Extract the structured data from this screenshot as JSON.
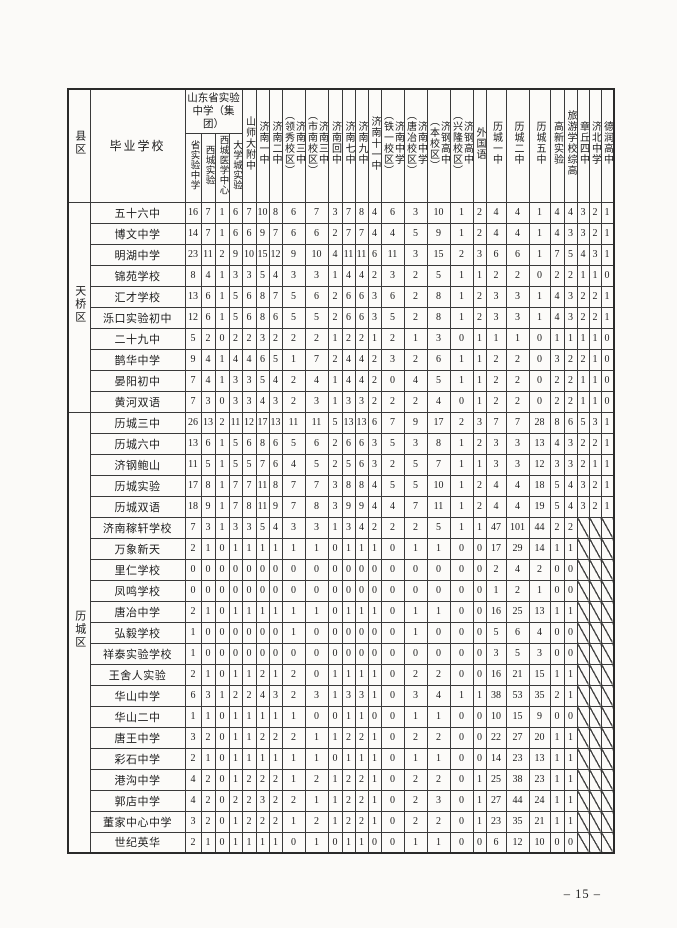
{
  "page": {
    "footer_page_number": "– 15 –"
  },
  "table": {
    "corner_header": "县区",
    "school_header": "毕业学校",
    "group_header": "山东省实验中学（集团）",
    "group_columns": [
      "省实验中学",
      "西城实验",
      "西城医学中心",
      "大学城实验"
    ],
    "columns": [
      "山师大附中",
      "济南一中",
      "济南二中",
      "济南三中\n（领秀校区）",
      "济南三中\n（市南校区）",
      "济南回中",
      "济南七中",
      "济南九中",
      "济南十一中",
      "济南中学\n（铁一校区）",
      "济南中学\n（唐冶校区）",
      "济钢高中\n（本校区）",
      "济钢高中\n（兴隆校区）",
      "外国语",
      "历城一中",
      "历城二中",
      "历城五中",
      "高新实验",
      "旅游学校综高",
      "章丘四中",
      "济北中学",
      "德润高中"
    ],
    "districts": [
      {
        "name": "天桥区",
        "rows": [
          {
            "school": "五十六中",
            "values": [
              16,
              7,
              1,
              6,
              7,
              10,
              8,
              6,
              7,
              3,
              7,
              8,
              4,
              6,
              3,
              10,
              1,
              2,
              4,
              4,
              1,
              4,
              4,
              3,
              2,
              1
            ]
          },
          {
            "school": "博文中学",
            "values": [
              14,
              7,
              1,
              6,
              6,
              9,
              7,
              6,
              6,
              2,
              7,
              7,
              4,
              4,
              5,
              9,
              1,
              2,
              4,
              4,
              1,
              4,
              3,
              3,
              2,
              1
            ]
          },
          {
            "school": "明湖中学",
            "values": [
              23,
              11,
              2,
              9,
              10,
              15,
              12,
              9,
              10,
              4,
              11,
              11,
              6,
              11,
              3,
              15,
              2,
              3,
              6,
              6,
              1,
              7,
              5,
              4,
              3,
              1
            ]
          },
          {
            "school": "锦苑学校",
            "values": [
              8,
              4,
              1,
              3,
              3,
              5,
              4,
              3,
              3,
              1,
              4,
              4,
              2,
              3,
              2,
              5,
              1,
              1,
              2,
              2,
              0,
              2,
              2,
              1,
              1,
              0
            ]
          },
          {
            "school": "汇才学校",
            "values": [
              13,
              6,
              1,
              5,
              6,
              8,
              7,
              5,
              6,
              2,
              6,
              6,
              3,
              6,
              2,
              8,
              1,
              2,
              3,
              3,
              1,
              4,
              3,
              2,
              2,
              1
            ]
          },
          {
            "school": "泺口实验初中",
            "values": [
              12,
              6,
              1,
              5,
              6,
              8,
              6,
              5,
              5,
              2,
              6,
              6,
              3,
              5,
              2,
              8,
              1,
              2,
              3,
              3,
              1,
              4,
              3,
              2,
              2,
              1
            ]
          },
          {
            "school": "二十九中",
            "values": [
              5,
              2,
              0,
              2,
              2,
              3,
              2,
              2,
              2,
              1,
              2,
              2,
              1,
              2,
              1,
              3,
              0,
              1,
              1,
              1,
              0,
              1,
              1,
              1,
              1,
              0
            ]
          },
          {
            "school": "鹊华中学",
            "values": [
              9,
              4,
              1,
              4,
              4,
              6,
              5,
              1,
              7,
              2,
              4,
              4,
              2,
              3,
              2,
              6,
              1,
              1,
              2,
              2,
              0,
              3,
              2,
              2,
              1,
              0
            ]
          },
          {
            "school": "晏阳初中",
            "values": [
              7,
              4,
              1,
              3,
              3,
              5,
              4,
              2,
              4,
              1,
              4,
              4,
              2,
              0,
              4,
              5,
              1,
              1,
              2,
              2,
              0,
              2,
              2,
              1,
              1,
              0
            ]
          },
          {
            "school": "黄河双语",
            "values": [
              7,
              3,
              0,
              3,
              3,
              4,
              3,
              2,
              3,
              1,
              3,
              3,
              2,
              2,
              2,
              4,
              0,
              1,
              2,
              2,
              0,
              2,
              2,
              1,
              1,
              0
            ]
          }
        ]
      },
      {
        "name": "历城区",
        "rows": [
          {
            "school": "历城三中",
            "values": [
              26,
              13,
              2,
              11,
              12,
              17,
              13,
              11,
              11,
              5,
              13,
              13,
              6,
              7,
              9,
              17,
              2,
              3,
              7,
              7,
              28,
              8,
              6,
              5,
              3,
              1
            ]
          },
          {
            "school": "历城六中",
            "values": [
              13,
              6,
              1,
              5,
              6,
              8,
              6,
              5,
              6,
              2,
              6,
              6,
              3,
              5,
              3,
              8,
              1,
              2,
              3,
              3,
              13,
              4,
              3,
              2,
              2,
              1
            ]
          },
          {
            "school": "济钢鲍山",
            "values": [
              11,
              5,
              1,
              5,
              5,
              7,
              6,
              4,
              5,
              2,
              5,
              6,
              3,
              2,
              5,
              7,
              1,
              1,
              3,
              3,
              12,
              3,
              3,
              2,
              1,
              1
            ]
          },
          {
            "school": "历城实验",
            "values": [
              17,
              8,
              1,
              7,
              7,
              11,
              8,
              7,
              7,
              3,
              8,
              8,
              4,
              5,
              5,
              10,
              1,
              2,
              4,
              4,
              18,
              5,
              4,
              3,
              2,
              1
            ]
          },
          {
            "school": "历城双语",
            "values": [
              18,
              9,
              1,
              7,
              8,
              11,
              9,
              7,
              8,
              3,
              9,
              9,
              4,
              4,
              7,
              11,
              1,
              2,
              4,
              4,
              19,
              5,
              4,
              3,
              2,
              1
            ]
          },
          {
            "school": "济南稼轩学校",
            "values": [
              7,
              3,
              1,
              3,
              3,
              5,
              4,
              3,
              3,
              1,
              3,
              4,
              2,
              2,
              2,
              5,
              1,
              1,
              47,
              101,
              44,
              2,
              2,
              null,
              null,
              null
            ]
          },
          {
            "school": "万象新天",
            "values": [
              2,
              1,
              0,
              1,
              1,
              1,
              1,
              1,
              1,
              0,
              1,
              1,
              1,
              0,
              1,
              1,
              0,
              0,
              17,
              29,
              14,
              1,
              1,
              null,
              null,
              null
            ]
          },
          {
            "school": "里仁学校",
            "values": [
              0,
              0,
              0,
              0,
              0,
              0,
              0,
              0,
              0,
              0,
              0,
              0,
              0,
              0,
              0,
              0,
              0,
              0,
              2,
              4,
              2,
              0,
              0,
              null,
              null,
              null
            ]
          },
          {
            "school": "凤鸣学校",
            "values": [
              0,
              0,
              0,
              0,
              0,
              0,
              0,
              0,
              0,
              0,
              0,
              0,
              0,
              0,
              0,
              0,
              0,
              0,
              1,
              2,
              1,
              0,
              0,
              null,
              null,
              null
            ]
          },
          {
            "school": "唐冶中学",
            "values": [
              2,
              1,
              0,
              1,
              1,
              1,
              1,
              1,
              1,
              0,
              1,
              1,
              1,
              0,
              1,
              1,
              0,
              0,
              16,
              25,
              13,
              1,
              1,
              null,
              null,
              null
            ]
          },
          {
            "school": "弘毅学校",
            "values": [
              1,
              0,
              0,
              0,
              0,
              0,
              0,
              1,
              0,
              0,
              0,
              0,
              0,
              0,
              1,
              0,
              0,
              0,
              5,
              6,
              4,
              0,
              0,
              null,
              null,
              null
            ]
          },
          {
            "school": "祥泰实验学校",
            "values": [
              1,
              0,
              0,
              0,
              0,
              0,
              0,
              0,
              0,
              0,
              0,
              0,
              0,
              0,
              0,
              0,
              0,
              0,
              3,
              5,
              3,
              0,
              0,
              null,
              null,
              null
            ]
          },
          {
            "school": "王舍人实验",
            "values": [
              2,
              1,
              0,
              1,
              1,
              2,
              1,
              2,
              0,
              1,
              1,
              1,
              1,
              0,
              2,
              2,
              0,
              0,
              16,
              21,
              15,
              1,
              1,
              null,
              null,
              null
            ]
          },
          {
            "school": "华山中学",
            "values": [
              6,
              3,
              1,
              2,
              2,
              4,
              3,
              2,
              3,
              1,
              3,
              3,
              1,
              0,
              3,
              4,
              1,
              1,
              38,
              53,
              35,
              2,
              1,
              null,
              null,
              null
            ]
          },
          {
            "school": "华山二中",
            "values": [
              1,
              1,
              0,
              1,
              1,
              1,
              1,
              1,
              0,
              0,
              1,
              1,
              0,
              0,
              1,
              1,
              0,
              0,
              10,
              15,
              9,
              0,
              0,
              null,
              null,
              null
            ]
          },
          {
            "school": "唐王中学",
            "values": [
              3,
              2,
              0,
              1,
              1,
              2,
              2,
              2,
              1,
              1,
              2,
              2,
              1,
              0,
              2,
              2,
              0,
              0,
              22,
              27,
              20,
              1,
              1,
              null,
              null,
              null
            ]
          },
          {
            "school": "彩石中学",
            "values": [
              2,
              1,
              0,
              1,
              1,
              1,
              1,
              1,
              1,
              0,
              1,
              1,
              1,
              0,
              1,
              1,
              0,
              0,
              14,
              23,
              13,
              1,
              1,
              null,
              null,
              null
            ]
          },
          {
            "school": "港沟中学",
            "values": [
              4,
              2,
              0,
              1,
              2,
              2,
              2,
              1,
              2,
              1,
              2,
              2,
              1,
              0,
              2,
              2,
              0,
              1,
              25,
              38,
              23,
              1,
              1,
              null,
              null,
              null
            ]
          },
          {
            "school": "郭店中学",
            "values": [
              4,
              2,
              0,
              2,
              2,
              3,
              2,
              2,
              1,
              1,
              2,
              2,
              1,
              0,
              2,
              3,
              0,
              1,
              27,
              44,
              24,
              1,
              1,
              null,
              null,
              null
            ]
          },
          {
            "school": "董家中心中学",
            "values": [
              3,
              2,
              0,
              1,
              2,
              2,
              2,
              1,
              2,
              1,
              2,
              2,
              1,
              0,
              2,
              2,
              0,
              1,
              23,
              35,
              21,
              1,
              1,
              null,
              null,
              null
            ]
          },
          {
            "school": "世纪英华",
            "values": [
              2,
              1,
              0,
              1,
              1,
              1,
              1,
              0,
              1,
              0,
              1,
              1,
              0,
              0,
              1,
              1,
              0,
              0,
              6,
              12,
              10,
              0,
              0,
              null,
              null,
              null
            ]
          }
        ]
      }
    ]
  }
}
